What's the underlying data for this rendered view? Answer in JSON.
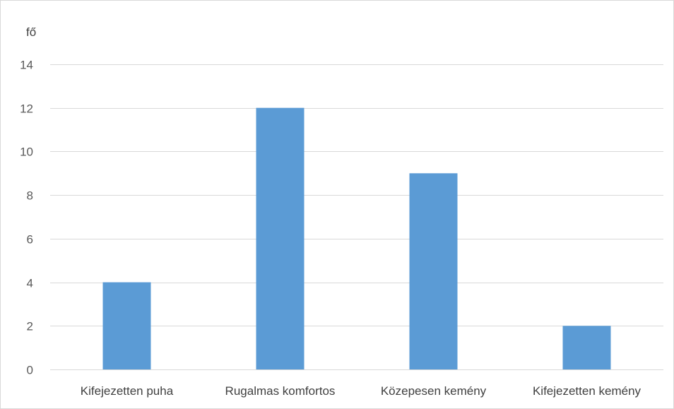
{
  "chart_data": {
    "type": "bar",
    "title": "",
    "xlabel": "",
    "ylabel": "fő",
    "categories": [
      "Kifejezetten puha",
      "Rugalmas komfortos",
      "Közepesen kemény",
      "Kifejezetten kemény"
    ],
    "values": [
      4,
      12,
      9,
      2
    ],
    "ylim": [
      0,
      14
    ],
    "yticks": [
      0,
      2,
      4,
      6,
      8,
      10,
      12,
      14
    ],
    "grid": true,
    "legend": "none",
    "bar_color": "#5b9bd5",
    "gridline_color": "#d9d9d9"
  }
}
